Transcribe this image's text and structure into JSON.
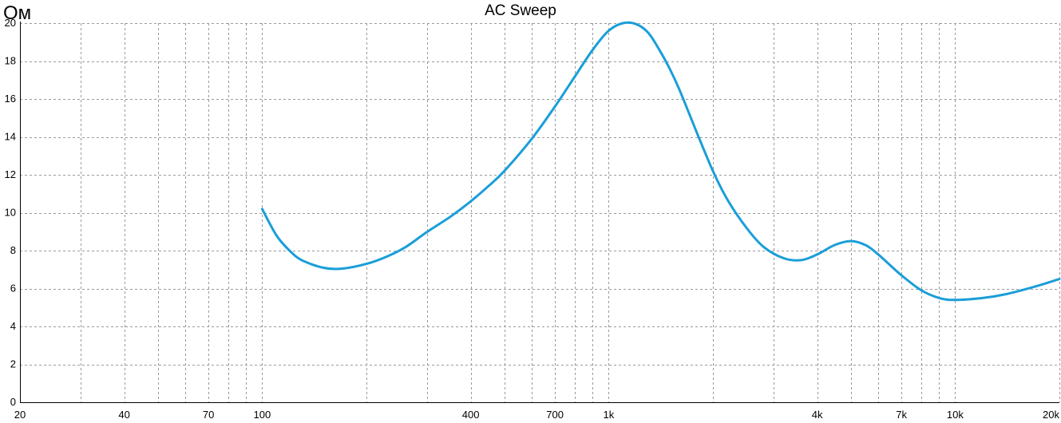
{
  "chart_data": {
    "type": "line",
    "title": "AC Sweep",
    "ylabel": "Ом",
    "xlabel": "",
    "x_scale": "log",
    "xlim": [
      20,
      20000
    ],
    "ylim": [
      0,
      20
    ],
    "grid": true,
    "x_ticks": [
      20,
      40,
      70,
      100,
      400,
      700,
      1000,
      4000,
      7000,
      10000,
      20000
    ],
    "x_tick_labels": [
      "20",
      "40",
      "70",
      "100",
      "400",
      "700",
      "1k",
      "4k",
      "7k",
      "10k",
      "20k"
    ],
    "x_gridlines": [
      30,
      40,
      50,
      60,
      70,
      80,
      90,
      100,
      200,
      300,
      400,
      500,
      600,
      700,
      800,
      900,
      1000,
      2000,
      3000,
      4000,
      5000,
      6000,
      7000,
      8000,
      9000,
      10000,
      20000
    ],
    "y_ticks": [
      0,
      2,
      4,
      6,
      8,
      10,
      12,
      14,
      16,
      18,
      20
    ],
    "y_tick_labels": [
      "0",
      "2",
      "4",
      "6",
      "8",
      "10",
      "12",
      "14",
      "16",
      "18",
      "20"
    ],
    "series": [
      {
        "color": "#1a9ed8",
        "x": [
          100,
          110,
          120,
          130,
          150,
          170,
          200,
          230,
          260,
          300,
          350,
          400,
          450,
          500,
          600,
          700,
          800,
          900,
          1000,
          1100,
          1200,
          1300,
          1400,
          1500,
          1600,
          1800,
          2000,
          2200,
          2500,
          2800,
          3200,
          3600,
          4000,
          4500,
          5000,
          5500,
          6000,
          7000,
          8000,
          9000,
          10000,
          12000,
          14000,
          17000,
          20000
        ],
        "y": [
          10.2,
          8.8,
          8.0,
          7.5,
          7.1,
          7.05,
          7.3,
          7.7,
          8.2,
          9.0,
          9.8,
          10.6,
          11.4,
          12.2,
          13.9,
          15.6,
          17.2,
          18.6,
          19.6,
          20.0,
          19.95,
          19.5,
          18.6,
          17.6,
          16.5,
          14.2,
          12.2,
          10.7,
          9.2,
          8.2,
          7.6,
          7.5,
          7.8,
          8.3,
          8.5,
          8.3,
          7.8,
          6.7,
          5.9,
          5.5,
          5.4,
          5.5,
          5.7,
          6.1,
          6.5
        ]
      }
    ]
  }
}
